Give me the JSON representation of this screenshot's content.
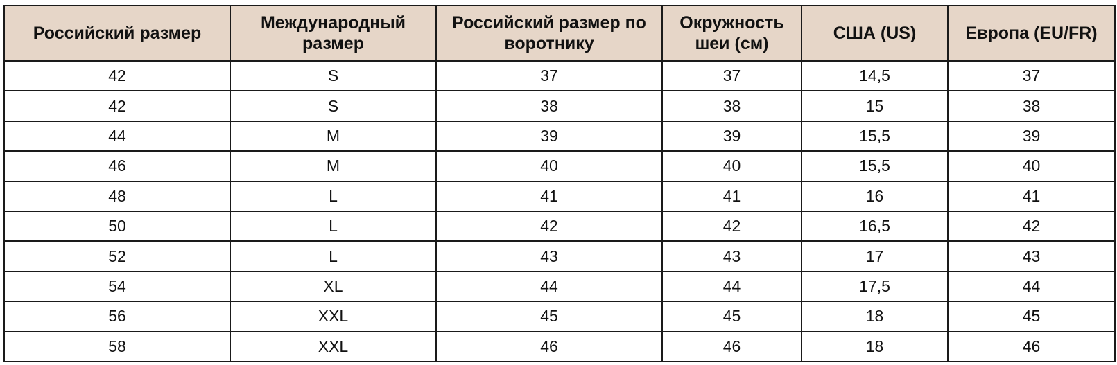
{
  "headers": [
    "Российский размер",
    "Международный размер",
    "Российский размер по воротнику",
    "Окружность шеи (см)",
    "США (US)",
    "Европа (EU/FR)"
  ],
  "header_color": "#e6d6c8",
  "rows": [
    [
      "42",
      "S",
      "37",
      "37",
      "14,5",
      "37"
    ],
    [
      "42",
      "S",
      "38",
      "38",
      "15",
      "38"
    ],
    [
      "44",
      "M",
      "39",
      "39",
      "15,5",
      "39"
    ],
    [
      "46",
      "M",
      "40",
      "40",
      "15,5",
      "40"
    ],
    [
      "48",
      "L",
      "41",
      "41",
      "16",
      "41"
    ],
    [
      "50",
      "L",
      "42",
      "42",
      "16,5",
      "42"
    ],
    [
      "52",
      "L",
      "43",
      "43",
      "17",
      "43"
    ],
    [
      "54",
      "XL",
      "44",
      "44",
      "17,5",
      "44"
    ],
    [
      "56",
      "XXL",
      "45",
      "45",
      "18",
      "45"
    ],
    [
      "58",
      "XXL",
      "46",
      "46",
      "18",
      "46"
    ]
  ]
}
